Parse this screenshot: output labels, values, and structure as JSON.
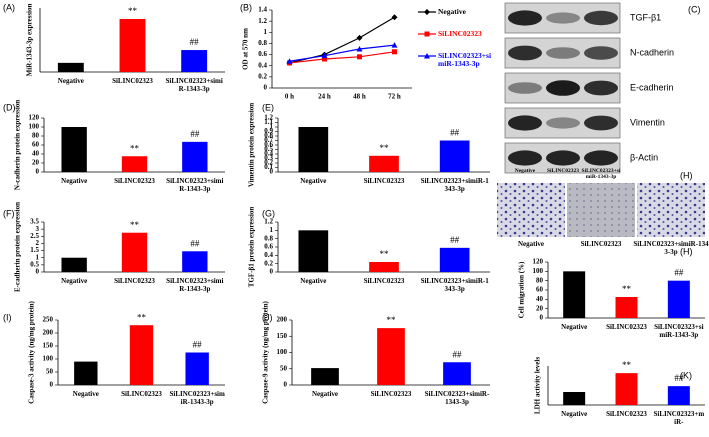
{
  "chart_data": [
    {
      "type": "bar",
      "panel": "(A)",
      "ylabel": "MiR-1343-3p expression",
      "categories": [
        "Negative",
        "SiLINC02323",
        "SiLINC02323+simiR-1343-3p"
      ],
      "values": [
        1,
        5.8,
        2.4
      ],
      "colors": [
        "#000000",
        "#ff0000",
        "#0000ff"
      ],
      "ylim": [
        0,
        7
      ],
      "annotations": [
        null,
        "**",
        "##"
      ]
    },
    {
      "type": "line",
      "panel": "(B)",
      "ylabel": "OD at 570 nm",
      "categories": [
        "0 h",
        "24 h",
        "48 h",
        "72 h"
      ],
      "ylim": [
        0,
        1.4
      ],
      "yticks": [
        0,
        0.2,
        0.4,
        0.6,
        0.8,
        1,
        1.2,
        1.4
      ],
      "series": [
        {
          "name": "Negative",
          "color": "#000000",
          "marker": "diamond",
          "values": [
            0.45,
            0.6,
            0.9,
            1.27
          ]
        },
        {
          "name": "SiLINC02323",
          "color": "#ff0000",
          "marker": "square",
          "values": [
            0.45,
            0.52,
            0.56,
            0.65
          ]
        },
        {
          "name": "SiLINC02323+simiR-1343-3p",
          "color": "#0000ff",
          "marker": "triangle",
          "values": [
            0.48,
            0.58,
            0.7,
            0.77
          ]
        }
      ]
    },
    {
      "type": "bar",
      "panel": "(D)",
      "ylabel": "N-cadherin protein expression",
      "categories": [
        "Negative",
        "SiLINC02323",
        "SiLINC02323+simiR-1343-3p"
      ],
      "values": [
        100,
        35,
        67
      ],
      "colors": [
        "#000000",
        "#ff0000",
        "#0000ff"
      ],
      "ylim": [
        0,
        120
      ],
      "yticks": [
        0,
        20,
        40,
        60,
        80,
        100,
        120
      ],
      "annotations": [
        null,
        "**",
        "##"
      ]
    },
    {
      "type": "bar",
      "panel": "(E)",
      "ylabel": "Vimentin protein expression",
      "categories": [
        "Negative",
        "SiLINC02323",
        "SiLINC02323+simiR-1343-3p"
      ],
      "values": [
        1,
        0.36,
        0.7
      ],
      "colors": [
        "#000000",
        "#ff0000",
        "#0000ff"
      ],
      "ylim": [
        0,
        1.2
      ],
      "yticks": [
        0,
        0.1,
        0.2,
        0.3,
        0.4,
        0.5,
        0.6,
        0.7,
        0.8,
        0.9,
        1,
        1.1,
        1.2
      ],
      "annotations": [
        null,
        "**",
        "##"
      ]
    },
    {
      "type": "bar",
      "panel": "(F)",
      "ylabel": "E-cadherin protein expression",
      "categories": [
        "Negative",
        "SiLINC02323",
        "SiLINC02323+simiR-1343-3p"
      ],
      "values": [
        1,
        2.75,
        1.45
      ],
      "colors": [
        "#000000",
        "#ff0000",
        "#0000ff"
      ],
      "ylim": [
        0,
        3.5
      ],
      "yticks": [
        0,
        0.5,
        1,
        1.5,
        2,
        2.5,
        3,
        3.5
      ],
      "annotations": [
        null,
        "**",
        "##"
      ]
    },
    {
      "type": "bar",
      "panel": "(G)",
      "ylabel": "TGF-β1 protein expression",
      "categories": [
        "Negative",
        "SiLINC02323",
        "SiLINC02323+simiR-1343-3p"
      ],
      "values": [
        1,
        0.24,
        0.58
      ],
      "colors": [
        "#000000",
        "#ff0000",
        "#0000ff"
      ],
      "ylim": [
        0,
        1.2
      ],
      "yticks": [
        0,
        0.2,
        0.4,
        0.6,
        0.8,
        1,
        1.2
      ],
      "annotations": [
        null,
        "**",
        "##"
      ]
    },
    {
      "type": "bar",
      "panel": "(H)",
      "ylabel": "Cell migration (%)",
      "categories": [
        "Negative",
        "SiLINC02323",
        "SiLINC02323+simiR-1343-3p"
      ],
      "values": [
        100,
        45,
        80
      ],
      "colors": [
        "#000000",
        "#ff0000",
        "#0000ff"
      ],
      "ylim": [
        0,
        120
      ],
      "yticks": [
        0,
        20,
        40,
        60,
        80,
        100,
        120
      ],
      "annotations": [
        null,
        "**",
        "##"
      ]
    },
    {
      "type": "bar",
      "panel": "(I)",
      "ylabel": "Caspase-3 activity (ng/mg protein)",
      "categories": [
        "Negative",
        "SiLINC02323",
        "SiLINC02323+simiR-1343-3p"
      ],
      "values": [
        90,
        230,
        125
      ],
      "colors": [
        "#000000",
        "#ff0000",
        "#0000ff"
      ],
      "ylim": [
        0,
        250
      ],
      "yticks": [
        0,
        50,
        100,
        150,
        200,
        250
      ],
      "annotations": [
        null,
        "**",
        "##"
      ]
    },
    {
      "type": "bar",
      "panel": "(J)",
      "ylabel": "Caspase-9 activity (ng/mg protein)",
      "categories": [
        "Negative",
        "SiLINC02323",
        "SiLINC02323+simiR-1343-3p"
      ],
      "values": [
        52,
        175,
        70
      ],
      "colors": [
        "#000000",
        "#ff0000",
        "#0000ff"
      ],
      "ylim": [
        0,
        200
      ],
      "yticks": [
        0,
        50,
        100,
        150,
        200
      ],
      "annotations": [
        null,
        "**",
        "##"
      ]
    },
    {
      "type": "bar",
      "panel": "(K)",
      "ylabel": "LDH activity levels",
      "categories": [
        "Negative",
        "SiLINC02323",
        "SiLINC02323+miR-"
      ],
      "values": [
        1,
        2.45,
        1.45
      ],
      "colors": [
        "#000000",
        "#ff0000",
        "#0000ff"
      ],
      "ylim": [
        0,
        3
      ],
      "annotations": [
        null,
        "**",
        "##"
      ]
    }
  ],
  "blot": {
    "panel": "(C)",
    "proteins": [
      "TGF-β1",
      "N-cadherin",
      "E-cadherin",
      "Vimentin",
      "β-Actin"
    ],
    "lanes": [
      "Negative",
      "SiLINC02323",
      "SiLINC02323+simiR-1343-3p"
    ]
  },
  "images": {
    "panel": "(H)",
    "labels": [
      "Negative",
      "SiLINC02323",
      "SiLINC02323+simiR-1343-3p"
    ]
  }
}
